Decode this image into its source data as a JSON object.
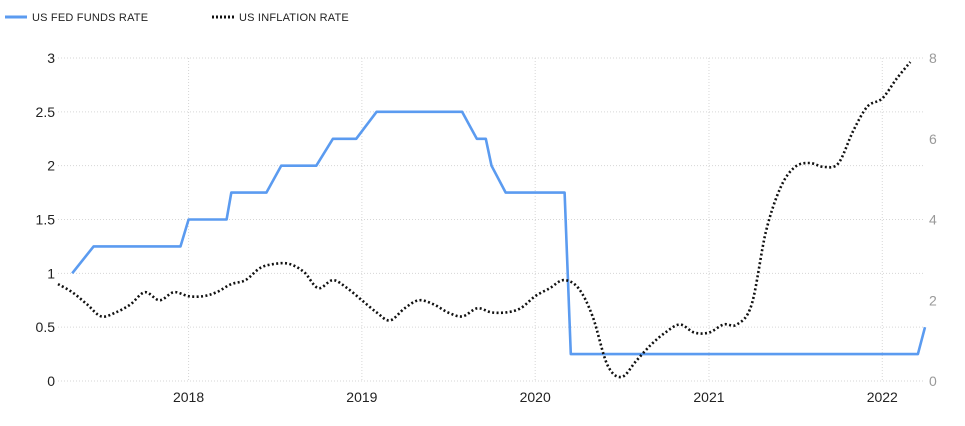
{
  "chart_data": {
    "type": "line",
    "title": "",
    "legend_position": "top-left",
    "grid": true,
    "x_axis": {
      "ticks": [
        "2018",
        "2019",
        "2020",
        "2021",
        "2022"
      ],
      "range": [
        "2017-04-01",
        "2022-04-01"
      ]
    },
    "y_axis_left": {
      "range": [
        0,
        3
      ],
      "ticks": [
        "0",
        "0.5",
        "1",
        "1.5",
        "2",
        "2.5",
        "3"
      ]
    },
    "y_axis_right": {
      "range": [
        0,
        8
      ],
      "ticks": [
        "0",
        "2",
        "4",
        "6",
        "8"
      ]
    },
    "series": [
      {
        "name": "US FED FUNDS RATE",
        "axis": "left",
        "style": "solid",
        "color": "#5b9bf0",
        "points": [
          [
            "2017-05-01",
            1.0
          ],
          [
            "2017-06-15",
            1.25
          ],
          [
            "2017-12-15",
            1.25
          ],
          [
            "2018-01-01",
            1.5
          ],
          [
            "2018-03-22",
            1.5
          ],
          [
            "2018-04-01",
            1.75
          ],
          [
            "2018-06-14",
            1.75
          ],
          [
            "2018-07-15",
            2.0
          ],
          [
            "2018-09-27",
            2.0
          ],
          [
            "2018-11-01",
            2.25
          ],
          [
            "2018-12-20",
            2.25
          ],
          [
            "2019-02-01",
            2.5
          ],
          [
            "2019-07-31",
            2.5
          ],
          [
            "2019-08-31",
            2.25
          ],
          [
            "2019-09-19",
            2.25
          ],
          [
            "2019-10-01",
            2.0
          ],
          [
            "2019-10-31",
            1.75
          ],
          [
            "2020-03-03",
            1.75
          ],
          [
            "2020-03-16",
            0.25
          ],
          [
            "2022-03-17",
            0.25
          ],
          [
            "2022-04-01",
            0.5
          ]
        ]
      },
      {
        "name": "US INFLATION RATE",
        "axis": "right",
        "style": "dotted",
        "color": "#111111",
        "points": [
          [
            "2017-04-01",
            2.4
          ],
          [
            "2017-05-01",
            2.2
          ],
          [
            "2017-06-01",
            1.9
          ],
          [
            "2017-07-01",
            1.6
          ],
          [
            "2017-08-01",
            1.7
          ],
          [
            "2017-09-01",
            1.9
          ],
          [
            "2017-10-01",
            2.2
          ],
          [
            "2017-11-01",
            2.0
          ],
          [
            "2017-12-01",
            2.2
          ],
          [
            "2018-01-01",
            2.1
          ],
          [
            "2018-02-01",
            2.1
          ],
          [
            "2018-03-01",
            2.2
          ],
          [
            "2018-04-01",
            2.4
          ],
          [
            "2018-05-01",
            2.5
          ],
          [
            "2018-06-01",
            2.8
          ],
          [
            "2018-07-01",
            2.9
          ],
          [
            "2018-08-01",
            2.9
          ],
          [
            "2018-09-01",
            2.7
          ],
          [
            "2018-10-01",
            2.3
          ],
          [
            "2018-11-01",
            2.5
          ],
          [
            "2018-12-01",
            2.3
          ],
          [
            "2019-01-01",
            2.0
          ],
          [
            "2019-02-01",
            1.7
          ],
          [
            "2019-03-01",
            1.5
          ],
          [
            "2019-04-01",
            1.8
          ],
          [
            "2019-05-01",
            2.0
          ],
          [
            "2019-06-01",
            1.9
          ],
          [
            "2019-07-01",
            1.7
          ],
          [
            "2019-08-01",
            1.6
          ],
          [
            "2019-09-01",
            1.8
          ],
          [
            "2019-10-01",
            1.7
          ],
          [
            "2019-11-01",
            1.7
          ],
          [
            "2019-12-01",
            1.8
          ],
          [
            "2020-01-01",
            2.1
          ],
          [
            "2020-02-01",
            2.3
          ],
          [
            "2020-03-01",
            2.5
          ],
          [
            "2020-04-01",
            2.3
          ],
          [
            "2020-05-01",
            1.6
          ],
          [
            "2020-06-01",
            0.4
          ],
          [
            "2020-07-01",
            0.1
          ],
          [
            "2020-08-01",
            0.5
          ],
          [
            "2020-09-01",
            0.9
          ],
          [
            "2020-10-01",
            1.2
          ],
          [
            "2020-11-01",
            1.4
          ],
          [
            "2020-12-01",
            1.2
          ],
          [
            "2021-01-01",
            1.2
          ],
          [
            "2021-02-01",
            1.4
          ],
          [
            "2021-03-01",
            1.4
          ],
          [
            "2021-04-01",
            1.9
          ],
          [
            "2021-05-01",
            3.7
          ],
          [
            "2021-06-01",
            4.8
          ],
          [
            "2021-07-01",
            5.3
          ],
          [
            "2021-08-01",
            5.4
          ],
          [
            "2021-09-01",
            5.3
          ],
          [
            "2021-10-01",
            5.4
          ],
          [
            "2021-11-01",
            6.2
          ],
          [
            "2021-12-01",
            6.8
          ],
          [
            "2022-01-01",
            7.0
          ],
          [
            "2022-02-01",
            7.5
          ],
          [
            "2022-03-01",
            7.9
          ]
        ]
      }
    ]
  }
}
